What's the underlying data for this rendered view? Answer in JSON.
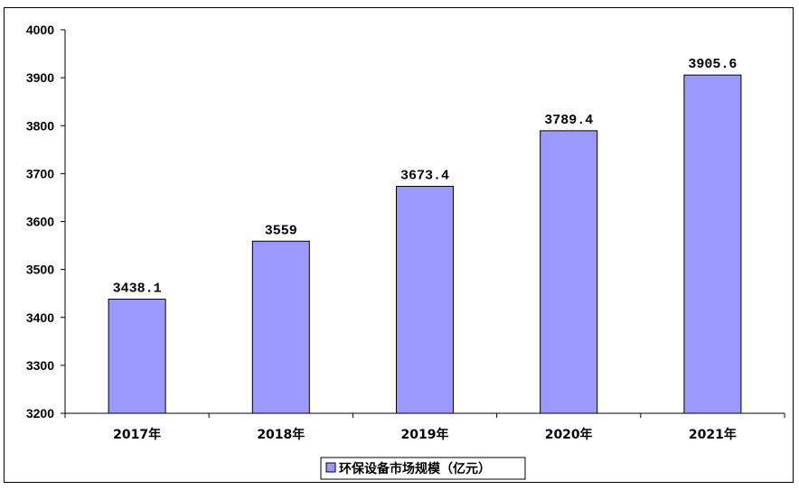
{
  "chart_data": {
    "type": "bar",
    "categories": [
      "2017年",
      "2018年",
      "2019年",
      "2020年",
      "2021年"
    ],
    "series": [
      {
        "name": "环保设备市场规模（亿元）",
        "values": [
          3438.1,
          3559,
          3673.4,
          3789.4,
          3905.6
        ],
        "labels": [
          "3438.1",
          "3559",
          "3673.4",
          "3789.4",
          "3905.6"
        ]
      }
    ],
    "title": "",
    "xlabel": "",
    "ylabel": "",
    "ylim": [
      3200,
      4000
    ],
    "yticks": [
      3200,
      3300,
      3400,
      3500,
      3600,
      3700,
      3800,
      3900,
      4000
    ],
    "grid": false,
    "legend_position": "bottom",
    "colors": {
      "bar": "#9999ff",
      "bar_stroke": "#000000"
    }
  }
}
